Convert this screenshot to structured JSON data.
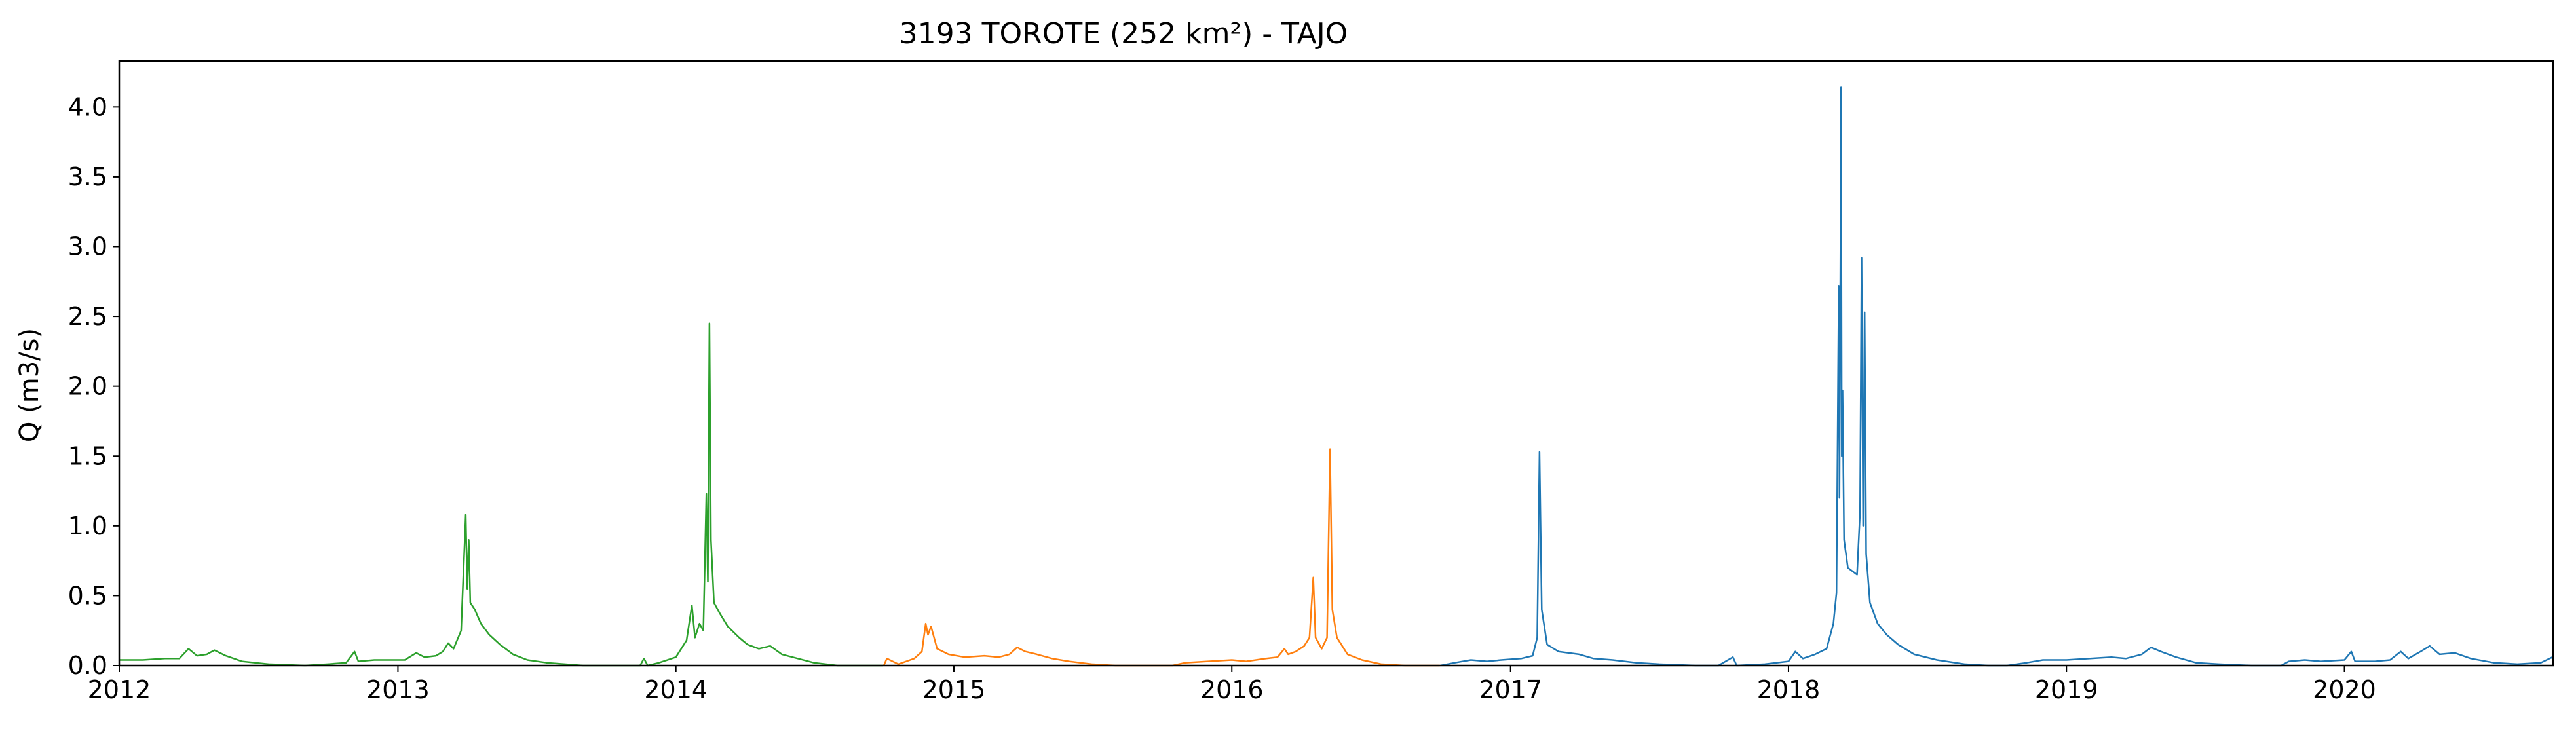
{
  "chart_data": {
    "type": "line",
    "title": "3193 TOROTE (252 km²) - TAJO",
    "xlabel": "",
    "ylabel": "Q (m3/s)",
    "xlim": [
      "2012-01-01",
      "2020-10-01"
    ],
    "ylim": [
      0,
      4.33
    ],
    "x_ticks": [
      "2012",
      "2013",
      "2014",
      "2015",
      "2016",
      "2017",
      "2018",
      "2019",
      "2020"
    ],
    "y_ticks": [
      "0.0",
      "0.5",
      "1.0",
      "1.5",
      "2.0",
      "2.5",
      "3.0",
      "3.5",
      "4.0"
    ],
    "grid": false,
    "legend": "none",
    "series": [
      {
        "color": "#2ca02c",
        "points": [
          [
            "2012-01-01",
            0.04
          ],
          [
            "2012-02-01",
            0.04
          ],
          [
            "2012-03-01",
            0.05
          ],
          [
            "2012-03-20",
            0.05
          ],
          [
            "2012-04-01",
            0.12
          ],
          [
            "2012-04-12",
            0.07
          ],
          [
            "2012-04-25",
            0.08
          ],
          [
            "2012-05-05",
            0.11
          ],
          [
            "2012-05-20",
            0.07
          ],
          [
            "2012-06-10",
            0.03
          ],
          [
            "2012-07-15",
            0.01
          ],
          [
            "2012-09-01",
            0.0
          ],
          [
            "2012-10-01",
            0.01
          ],
          [
            "2012-10-25",
            0.02
          ],
          [
            "2012-11-05",
            0.1
          ],
          [
            "2012-11-10",
            0.03
          ],
          [
            "2012-12-01",
            0.04
          ],
          [
            "2013-01-10",
            0.04
          ],
          [
            "2013-01-25",
            0.09
          ],
          [
            "2013-02-05",
            0.06
          ],
          [
            "2013-02-20",
            0.07
          ],
          [
            "2013-03-01",
            0.1
          ],
          [
            "2013-03-08",
            0.16
          ],
          [
            "2013-03-15",
            0.12
          ],
          [
            "2013-03-25",
            0.25
          ],
          [
            "2013-03-31",
            1.08
          ],
          [
            "2013-04-02",
            0.55
          ],
          [
            "2013-04-04",
            0.9
          ],
          [
            "2013-04-06",
            0.45
          ],
          [
            "2013-04-12",
            0.4
          ],
          [
            "2013-04-20",
            0.3
          ],
          [
            "2013-05-01",
            0.22
          ],
          [
            "2013-05-15",
            0.15
          ],
          [
            "2013-06-01",
            0.08
          ],
          [
            "2013-06-20",
            0.04
          ],
          [
            "2013-07-15",
            0.02
          ],
          [
            "2013-09-01",
            0.0
          ],
          [
            "2013-11-15",
            0.0
          ],
          [
            "2013-11-20",
            0.05
          ],
          [
            "2013-11-25",
            0.0
          ],
          [
            "2013-12-10",
            0.02
          ],
          [
            "2014-01-01",
            0.06
          ],
          [
            "2014-01-15",
            0.18
          ],
          [
            "2014-01-22",
            0.43
          ],
          [
            "2014-01-26",
            0.2
          ],
          [
            "2014-02-01",
            0.3
          ],
          [
            "2014-02-06",
            0.25
          ],
          [
            "2014-02-10",
            1.23
          ],
          [
            "2014-02-12",
            0.6
          ],
          [
            "2014-02-14",
            2.45
          ],
          [
            "2014-02-16",
            0.9
          ],
          [
            "2014-02-20",
            0.45
          ],
          [
            "2014-02-28",
            0.37
          ],
          [
            "2014-03-10",
            0.28
          ],
          [
            "2014-03-25",
            0.2
          ],
          [
            "2014-04-05",
            0.15
          ],
          [
            "2014-04-20",
            0.12
          ],
          [
            "2014-05-05",
            0.14
          ],
          [
            "2014-05-20",
            0.08
          ],
          [
            "2014-06-10",
            0.05
          ],
          [
            "2014-07-01",
            0.02
          ],
          [
            "2014-08-01",
            0.0
          ],
          [
            "2014-09-30",
            0.0
          ]
        ]
      },
      {
        "color": "#ff7f0e",
        "points": [
          [
            "2014-10-01",
            0.0
          ],
          [
            "2014-10-05",
            0.05
          ],
          [
            "2014-10-20",
            0.01
          ],
          [
            "2014-11-10",
            0.05
          ],
          [
            "2014-11-20",
            0.1
          ],
          [
            "2014-11-25",
            0.3
          ],
          [
            "2014-11-28",
            0.22
          ],
          [
            "2014-12-02",
            0.28
          ],
          [
            "2014-12-10",
            0.12
          ],
          [
            "2014-12-25",
            0.08
          ],
          [
            "2015-01-15",
            0.06
          ],
          [
            "2015-02-10",
            0.07
          ],
          [
            "2015-03-01",
            0.06
          ],
          [
            "2015-03-15",
            0.08
          ],
          [
            "2015-03-25",
            0.13
          ],
          [
            "2015-04-05",
            0.1
          ],
          [
            "2015-04-20",
            0.08
          ],
          [
            "2015-05-10",
            0.05
          ],
          [
            "2015-06-01",
            0.03
          ],
          [
            "2015-07-01",
            0.01
          ],
          [
            "2015-08-01",
            0.0
          ],
          [
            "2015-10-15",
            0.0
          ],
          [
            "2015-11-01",
            0.02
          ],
          [
            "2015-12-01",
            0.03
          ],
          [
            "2016-01-01",
            0.04
          ],
          [
            "2016-01-20",
            0.03
          ],
          [
            "2016-02-15",
            0.05
          ],
          [
            "2016-03-01",
            0.06
          ],
          [
            "2016-03-10",
            0.12
          ],
          [
            "2016-03-15",
            0.08
          ],
          [
            "2016-03-25",
            0.1
          ],
          [
            "2016-04-05",
            0.14
          ],
          [
            "2016-04-12",
            0.2
          ],
          [
            "2016-04-17",
            0.63
          ],
          [
            "2016-04-20",
            0.2
          ],
          [
            "2016-04-28",
            0.12
          ],
          [
            "2016-05-05",
            0.2
          ],
          [
            "2016-05-09",
            1.55
          ],
          [
            "2016-05-12",
            0.4
          ],
          [
            "2016-05-18",
            0.2
          ],
          [
            "2016-06-01",
            0.08
          ],
          [
            "2016-06-20",
            0.04
          ],
          [
            "2016-07-15",
            0.01
          ],
          [
            "2016-08-15",
            0.0
          ],
          [
            "2016-09-30",
            0.0
          ]
        ]
      },
      {
        "color": "#1f77b4",
        "points": [
          [
            "2016-10-01",
            0.0
          ],
          [
            "2016-10-20",
            0.02
          ],
          [
            "2016-11-10",
            0.04
          ],
          [
            "2016-12-01",
            0.03
          ],
          [
            "2016-12-20",
            0.04
          ],
          [
            "2017-01-15",
            0.05
          ],
          [
            "2017-01-30",
            0.07
          ],
          [
            "2017-02-05",
            0.2
          ],
          [
            "2017-02-08",
            1.53
          ],
          [
            "2017-02-11",
            0.4
          ],
          [
            "2017-02-18",
            0.15
          ],
          [
            "2017-03-05",
            0.1
          ],
          [
            "2017-04-01",
            0.08
          ],
          [
            "2017-04-20",
            0.05
          ],
          [
            "2017-05-15",
            0.04
          ],
          [
            "2017-06-15",
            0.02
          ],
          [
            "2017-07-15",
            0.01
          ],
          [
            "2017-09-01",
            0.0
          ],
          [
            "2017-10-01",
            0.0
          ],
          [
            "2017-10-20",
            0.06
          ],
          [
            "2017-10-25",
            0.0
          ],
          [
            "2017-12-01",
            0.01
          ],
          [
            "2018-01-01",
            0.03
          ],
          [
            "2018-01-10",
            0.1
          ],
          [
            "2018-01-20",
            0.05
          ],
          [
            "2018-02-05",
            0.08
          ],
          [
            "2018-02-20",
            0.12
          ],
          [
            "2018-03-01",
            0.3
          ],
          [
            "2018-03-05",
            0.52
          ],
          [
            "2018-03-08",
            2.72
          ],
          [
            "2018-03-09",
            1.2
          ],
          [
            "2018-03-11",
            4.14
          ],
          [
            "2018-03-12",
            1.5
          ],
          [
            "2018-03-13",
            1.97
          ],
          [
            "2018-03-15",
            0.9
          ],
          [
            "2018-03-20",
            0.7
          ],
          [
            "2018-04-01",
            0.65
          ],
          [
            "2018-04-05",
            1.1
          ],
          [
            "2018-04-07",
            2.92
          ],
          [
            "2018-04-09",
            1.0
          ],
          [
            "2018-04-11",
            2.53
          ],
          [
            "2018-04-13",
            0.8
          ],
          [
            "2018-04-18",
            0.45
          ],
          [
            "2018-04-28",
            0.3
          ],
          [
            "2018-05-10",
            0.22
          ],
          [
            "2018-05-25",
            0.15
          ],
          [
            "2018-06-15",
            0.08
          ],
          [
            "2018-07-15",
            0.04
          ],
          [
            "2018-08-20",
            0.01
          ],
          [
            "2018-09-20",
            0.0
          ],
          [
            "2018-10-15",
            0.0
          ],
          [
            "2018-11-10",
            0.02
          ],
          [
            "2018-12-01",
            0.04
          ],
          [
            "2019-01-01",
            0.04
          ],
          [
            "2019-02-01",
            0.05
          ],
          [
            "2019-03-01",
            0.06
          ],
          [
            "2019-03-20",
            0.05
          ],
          [
            "2019-04-10",
            0.08
          ],
          [
            "2019-04-22",
            0.13
          ],
          [
            "2019-05-05",
            0.1
          ],
          [
            "2019-05-25",
            0.06
          ],
          [
            "2019-06-20",
            0.02
          ],
          [
            "2019-07-20",
            0.01
          ],
          [
            "2019-09-01",
            0.0
          ],
          [
            "2019-10-10",
            0.0
          ],
          [
            "2019-10-20",
            0.03
          ],
          [
            "2019-11-10",
            0.04
          ],
          [
            "2019-12-01",
            0.03
          ],
          [
            "2020-01-01",
            0.04
          ],
          [
            "2020-01-10",
            0.1
          ],
          [
            "2020-01-15",
            0.03
          ],
          [
            "2020-02-10",
            0.03
          ],
          [
            "2020-03-01",
            0.04
          ],
          [
            "2020-03-15",
            0.1
          ],
          [
            "2020-03-25",
            0.05
          ],
          [
            "2020-04-10",
            0.1
          ],
          [
            "2020-04-22",
            0.14
          ],
          [
            "2020-05-05",
            0.08
          ],
          [
            "2020-05-25",
            0.09
          ],
          [
            "2020-06-15",
            0.05
          ],
          [
            "2020-07-15",
            0.02
          ],
          [
            "2020-08-15",
            0.01
          ],
          [
            "2020-09-15",
            0.02
          ],
          [
            "2020-09-30",
            0.06
          ],
          [
            "2020-10-01",
            0.03
          ]
        ]
      }
    ]
  }
}
